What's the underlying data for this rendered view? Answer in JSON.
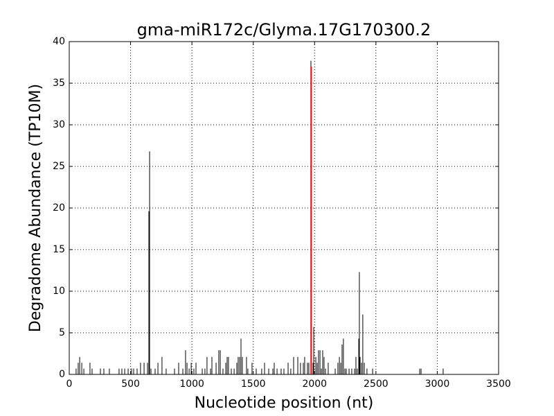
{
  "chart_data": {
    "type": "spike",
    "title": "gma-miR172c/Glyma.17G170300.2",
    "x_label": "Nucleotide position (nt)",
    "y_label": "Degradome Abundance (TP10M)",
    "xlim": [
      0,
      3500
    ],
    "ylim": [
      0,
      40
    ],
    "xticks": [
      0,
      500,
      1000,
      1500,
      2000,
      2500,
      3000,
      3500
    ],
    "yticks": [
      0,
      5,
      10,
      15,
      20,
      25,
      30,
      35,
      40
    ],
    "grid": true,
    "series": [
      {
        "color": "#000000",
        "x": [
          56,
          73,
          85,
          102,
          119,
          169,
          186,
          254,
          282,
          327,
          406,
          429,
          452,
          480,
          508,
          525,
          553,
          581,
          610,
          638,
          649,
          655,
          666,
          700,
          723,
          756,
          790,
          858,
          892,
          926,
          948,
          960,
          977,
          994,
          1016,
          1033,
          1084,
          1106,
          1123,
          1152,
          1163,
          1197,
          1219,
          1231,
          1253,
          1276,
          1287,
          1298,
          1321,
          1344,
          1366,
          1377,
          1389,
          1400,
          1411,
          1445,
          1456,
          1490,
          1524,
          1569,
          1592,
          1626,
          1660,
          1671,
          1694,
          1727,
          1750,
          1784,
          1806,
          1829,
          1863,
          1885,
          1908,
          1919,
          1942,
          1953,
          1970,
          1987,
          1993,
          2010,
          2021,
          2032,
          2044,
          2055,
          2066,
          2077,
          2089,
          2111,
          2168,
          2190,
          2202,
          2213,
          2224,
          2235,
          2247,
          2258,
          2281,
          2303,
          2326,
          2337,
          2348,
          2360,
          2365,
          2371,
          2382,
          2393,
          2405,
          2427,
          2473,
          2857,
          2868,
          3048
        ],
        "values": [
          0.7,
          1.4,
          2.1,
          1.4,
          0.7,
          1.4,
          0.7,
          0.7,
          0.7,
          0.7,
          0.7,
          0.7,
          0.7,
          0.7,
          0.7,
          0.7,
          0.7,
          1.4,
          1.4,
          1.4,
          19.6,
          26.8,
          0.7,
          0.7,
          1.4,
          2.1,
          0.7,
          0.7,
          1.4,
          0.7,
          2.9,
          1.4,
          0.7,
          1.4,
          0.7,
          1.4,
          0.7,
          0.7,
          2.1,
          0.7,
          2.1,
          1.4,
          2.9,
          2.9,
          0.7,
          1.4,
          2.1,
          2.1,
          0.7,
          0.7,
          1.4,
          2.1,
          2.1,
          4.3,
          2.1,
          2.1,
          0.7,
          1.4,
          0.7,
          0.7,
          1.4,
          0.7,
          0.7,
          1.4,
          0.7,
          0.7,
          0.7,
          1.4,
          0.7,
          2.1,
          2.1,
          1.4,
          1.4,
          2.1,
          1.4,
          1.4,
          37.7,
          1.4,
          5.7,
          2.1,
          1.4,
          2.9,
          2.9,
          0.7,
          2.9,
          2.1,
          0.7,
          1.4,
          0.7,
          1.4,
          2.1,
          1.4,
          3.6,
          4.3,
          0.7,
          0.7,
          0.7,
          0.7,
          0.7,
          2.1,
          0.7,
          4.3,
          12.3,
          2.1,
          1.4,
          7.2,
          1.4,
          0.7,
          0.7,
          0.7,
          0.7,
          0.7
        ]
      },
      {
        "color": "#ff0000",
        "x": [
          1972
        ],
        "values": [
          37
        ]
      }
    ]
  }
}
